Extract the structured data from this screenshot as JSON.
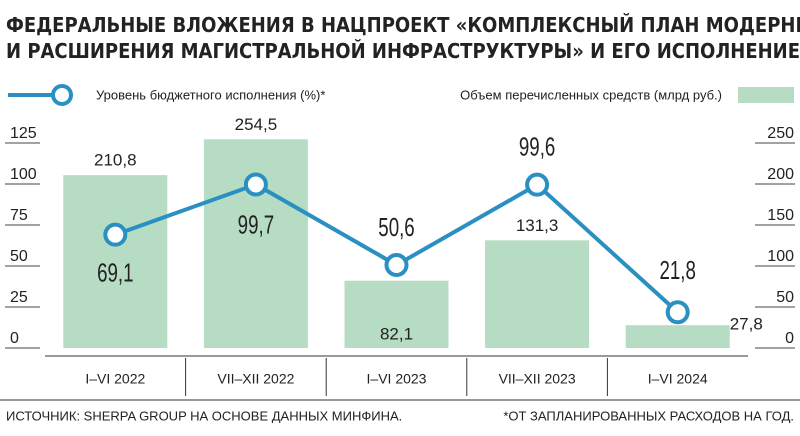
{
  "chart_data": {
    "type": "bar",
    "title": "ФЕДЕРАЛЬНЫЕ ВЛОЖЕНИЯ В НАЦПРОЕКТ «КОМПЛЕКСНЫЙ ПЛАН МОДЕРНИЗАЦИИ И РАСШИРЕНИЯ МАГИСТРАЛЬНОЙ ИНФРАСТРУКТУРЫ» И ЕГО ИСПОЛНЕНИЕ",
    "categories": [
      "I–VI 2022",
      "VII–XII 2022",
      "I–VI 2023",
      "VII–XII 2023",
      "I–VI 2024"
    ],
    "series": [
      {
        "name": "Объем перечисленных средств (млрд руб.)",
        "type": "bar",
        "axis": "y2",
        "color": "#b6dcc4",
        "values": [
          210.8,
          254.5,
          82.1,
          131.3,
          27.8
        ],
        "value_labels": [
          "210,8",
          "254,5",
          "82,1",
          "131,3",
          "27,8"
        ]
      },
      {
        "name": "Уровень бюджетного исполнения (%)*",
        "type": "line",
        "color": "#2a8fc1",
        "values": [
          69.1,
          99.7,
          50.6,
          99.6,
          21.8
        ],
        "value_labels": [
          "69,1",
          "99,7",
          "50,6",
          "99,6",
          "21,8"
        ]
      }
    ],
    "ylim": [
      0,
      125
    ],
    "yticks": [
      0,
      25,
      50,
      75,
      100,
      125
    ],
    "y2lim": [
      0,
      250
    ],
    "y2ticks": [
      0,
      50,
      100,
      150,
      200,
      250
    ],
    "source": "ИСТОЧНИК: SHERPA GROUP НА ОСНОВЕ ДАННЫХ МИНФИНА.",
    "note": "*ОТ ЗАПЛАНИРОВАННЫХ РАСХОДОВ НА ГОД."
  }
}
